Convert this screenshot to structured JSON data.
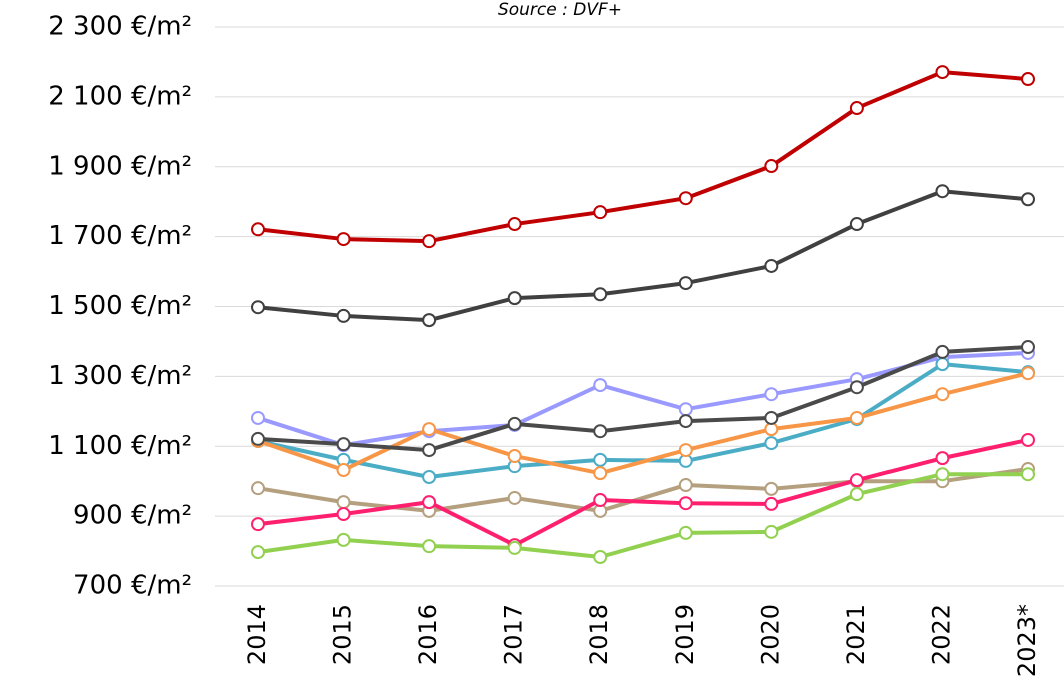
{
  "chart_data": {
    "type": "line",
    "subtitle": "Source : DVF+",
    "categories": [
      "2014",
      "2015",
      "2016",
      "2017",
      "2018",
      "2019",
      "2020",
      "2021",
      "2022",
      "2023*"
    ],
    "series": [
      {
        "color": "#c00000",
        "values": [
          1721,
          1693,
          1687,
          1736,
          1770,
          1810,
          1902,
          2068,
          2171,
          2151
        ]
      },
      {
        "color": "#404040",
        "values": [
          1498,
          1473,
          1461,
          1524,
          1535,
          1567,
          1616,
          1736,
          1830,
          1807
        ]
      },
      {
        "color": "#9999ff",
        "values": [
          1181,
          1103,
          1143,
          1161,
          1275,
          1206,
          1249,
          1292,
          1355,
          1367
        ]
      },
      {
        "color": "#4bacc6",
        "values": [
          1115,
          1061,
          1012,
          1043,
          1061,
          1058,
          1109,
          1178,
          1335,
          1312
        ]
      },
      {
        "color": "#f79646",
        "values": [
          1115,
          1032,
          1149,
          1072,
          1023,
          1089,
          1149,
          1181,
          1249,
          1309
        ]
      },
      {
        "color": "#4a4a4a",
        "values": [
          1121,
          1106,
          1089,
          1164,
          1143,
          1172,
          1181,
          1269,
          1370,
          1384
        ]
      },
      {
        "color": "#b4a07e",
        "values": [
          980,
          940,
          915,
          952,
          915,
          989,
          978,
          1000,
          1000,
          1035
        ]
      },
      {
        "color": "#ff1f6f",
        "values": [
          877,
          906,
          940,
          817,
          946,
          937,
          935,
          1003,
          1066,
          1118
        ]
      },
      {
        "color": "#92d050",
        "values": [
          797,
          832,
          814,
          809,
          783,
          852,
          855,
          963,
          1020,
          1020
        ]
      }
    ],
    "ylim": [
      700,
      2300
    ],
    "yticks": [
      {
        "value": 700,
        "label": "700 €/m²"
      },
      {
        "value": 900,
        "label": "900 €/m²"
      },
      {
        "value": 1100,
        "label": "1 100 €/m²"
      },
      {
        "value": 1300,
        "label": "1 300 €/m²"
      },
      {
        "value": 1500,
        "label": "1 500 €/m²"
      },
      {
        "value": 1700,
        "label": "1 700 €/m²"
      },
      {
        "value": 1900,
        "label": "1 900 €/m²"
      },
      {
        "value": 2100,
        "label": "2 100 €/m²"
      },
      {
        "value": 2300,
        "label": "2 300 €/m²"
      }
    ],
    "grid": true
  }
}
